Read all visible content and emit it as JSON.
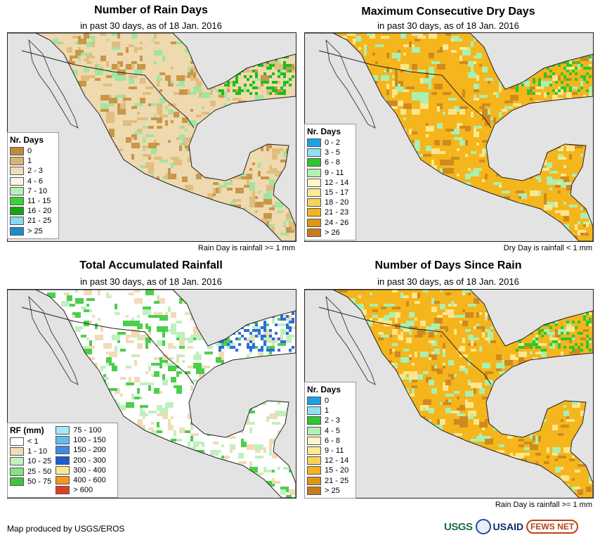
{
  "panels": [
    {
      "title": "Number of Rain Days",
      "subtitle": "in past 30 days, as of 18 Jan. 2016",
      "note": "Rain Day is rainfall >= 1 mm",
      "legend": {
        "title": "Nr. Days",
        "items": [
          {
            "label": "0",
            "color": "#c08a3b"
          },
          {
            "label": "1",
            "color": "#d9b475"
          },
          {
            "label": "2 - 3",
            "color": "#f0dcb6"
          },
          {
            "label": "4 - 6",
            "color": "#faf5e6"
          },
          {
            "label": "7 - 10",
            "color": "#b6f0b6"
          },
          {
            "label": "11 - 15",
            "color": "#3bd03b"
          },
          {
            "label": "16 - 20",
            "color": "#14a514"
          },
          {
            "label": "21 - 25",
            "color": "#8cd7f0"
          },
          {
            "label": "> 25",
            "color": "#1e8cc8"
          }
        ]
      },
      "map_colors": {
        "base": "#efd9ae",
        "dry": "#c9974a",
        "mid": "#e1bd80",
        "wet": "#9fe6a0",
        "very_wet": "#18c018"
      }
    },
    {
      "title": "Maximum Consecutive Dry Days",
      "subtitle": "in past 30 days, as of 18 Jan. 2016",
      "note": "Dry Day is rainfall < 1 mm",
      "legend": {
        "title": "Nr. Days",
        "items": [
          {
            "label": "0 - 2",
            "color": "#1ea0e6"
          },
          {
            "label": "3 - 5",
            "color": "#8ce1f5"
          },
          {
            "label": "6 - 8",
            "color": "#2dc82d"
          },
          {
            "label": "9 - 11",
            "color": "#b4f0b4"
          },
          {
            "label": "12 - 14",
            "color": "#fdf7c6"
          },
          {
            "label": "15 - 17",
            "color": "#fde98f"
          },
          {
            "label": "18 - 20",
            "color": "#f9d35a"
          },
          {
            "label": "21 - 23",
            "color": "#f5b41e"
          },
          {
            "label": "24 - 26",
            "color": "#de9516"
          },
          {
            "label": "> 26",
            "color": "#c57d1c"
          }
        ]
      },
      "map_colors": {
        "base": "#f5b51c",
        "dry": "#cf8a1f",
        "mid": "#fde68c",
        "wet": "#aaf0b0",
        "very_wet": "#2cc82c"
      }
    },
    {
      "title": "Total Accumulated Rainfall",
      "subtitle": "in past 30 days, as of 18 Jan. 2016",
      "note": "",
      "legend": {
        "title": "RF (mm)",
        "items": [
          {
            "label": "< 1",
            "color": "#ffffff"
          },
          {
            "label": "1 - 10",
            "color": "#f0dcb6"
          },
          {
            "label": "10 - 25",
            "color": "#bff0bf"
          },
          {
            "label": "25 - 50",
            "color": "#86e086"
          },
          {
            "label": "50 - 75",
            "color": "#3cc83c"
          }
        ],
        "items2": [
          {
            "label": "75 - 100",
            "color": "#a5e6fa"
          },
          {
            "label": "100 - 150",
            "color": "#5fbef0"
          },
          {
            "label": "150 - 200",
            "color": "#3c8ce6"
          },
          {
            "label": "200 - 300",
            "color": "#1e5ad2"
          },
          {
            "label": "300 - 400",
            "color": "#fde98f"
          },
          {
            "label": "400 - 600",
            "color": "#f5961e"
          },
          {
            "label": "> 600",
            "color": "#e63c1e"
          }
        ]
      },
      "map_colors": {
        "base": "#ffffff",
        "dry": "#f0dcb6",
        "mid": "#bff0bf",
        "wet": "#4ccf4c",
        "very_wet": "#2a6ee0"
      }
    },
    {
      "title": "Number of Days Since Rain",
      "subtitle": "in past 30 days, as of 18 Jan. 2016",
      "note": "Rain Day is rainfall >= 1 mm",
      "legend": {
        "title": "Nr. Days",
        "items": [
          {
            "label": "0",
            "color": "#1ea0e6"
          },
          {
            "label": "1",
            "color": "#8ce1f5"
          },
          {
            "label": "2 - 3",
            "color": "#2dc82d"
          },
          {
            "label": "4 - 5",
            "color": "#b4f0b4"
          },
          {
            "label": "6 - 8",
            "color": "#fdf7c6"
          },
          {
            "label": "9 - 11",
            "color": "#fde98f"
          },
          {
            "label": "12 - 14",
            "color": "#f9d35a"
          },
          {
            "label": "15 - 20",
            "color": "#f5b41e"
          },
          {
            "label": "21 - 25",
            "color": "#de9516"
          },
          {
            "label": "> 25",
            "color": "#c57d1c"
          }
        ]
      },
      "map_colors": {
        "base": "#f5b51c",
        "dry": "#cf8a1f",
        "mid": "#fde68c",
        "wet": "#aaf0b0",
        "very_wet": "#2cc82c"
      }
    }
  ],
  "footer": {
    "credit": "Map produced by USGS/EROS",
    "logos": [
      "USGS",
      "USAID",
      "FEWS NET"
    ]
  }
}
